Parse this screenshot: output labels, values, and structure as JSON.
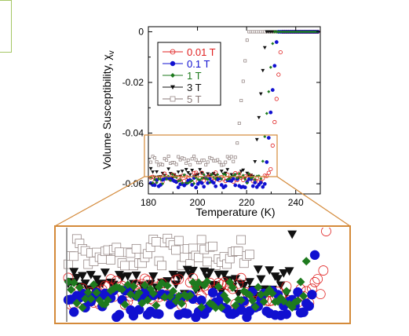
{
  "chart_data": {
    "type": "scatter",
    "title": "",
    "xlabel": "Temperature (K)",
    "ylabel_main": "Volume Susceptibility, χ",
    "ylabel_sub": "v",
    "xlim": [
      180,
      250
    ],
    "ylim": [
      -0.064,
      0.002
    ],
    "xticks": [
      "180",
      "200",
      "220",
      "240"
    ],
    "yticks": [
      "0",
      "-0.02",
      "-0.04",
      "-0.06"
    ],
    "grid": false,
    "legend_position": "top-left",
    "series": [
      {
        "name": "0.01 T",
        "color": "#e02020",
        "marker": "open-circle",
        "low": -0.0575,
        "tc": 232.0,
        "width": 2.2
      },
      {
        "name": "0.1 T",
        "color": "#1010d0",
        "marker": "filled-circle",
        "low": -0.0595,
        "tc": 230.0,
        "width": 2.2
      },
      {
        "name": "1 T",
        "color": "#1e7a1e",
        "marker": "filled-diamond",
        "low": -0.058,
        "tc": 228.5,
        "width": 2.0
      },
      {
        "name": "3 T",
        "color": "#111111",
        "marker": "filled-triangle-down",
        "low": -0.056,
        "tc": 225.5,
        "width": 2.4
      },
      {
        "name": "5 T",
        "color": "#8a7a78",
        "marker": "open-square",
        "low": -0.051,
        "tc": 218.0,
        "width": 1.6
      }
    ],
    "inset": {
      "label": "zoomed view of the highlighted low-temperature region",
      "region_x": [
        180,
        235
      ],
      "region_y": [
        -0.0625,
        -0.047
      ]
    }
  }
}
